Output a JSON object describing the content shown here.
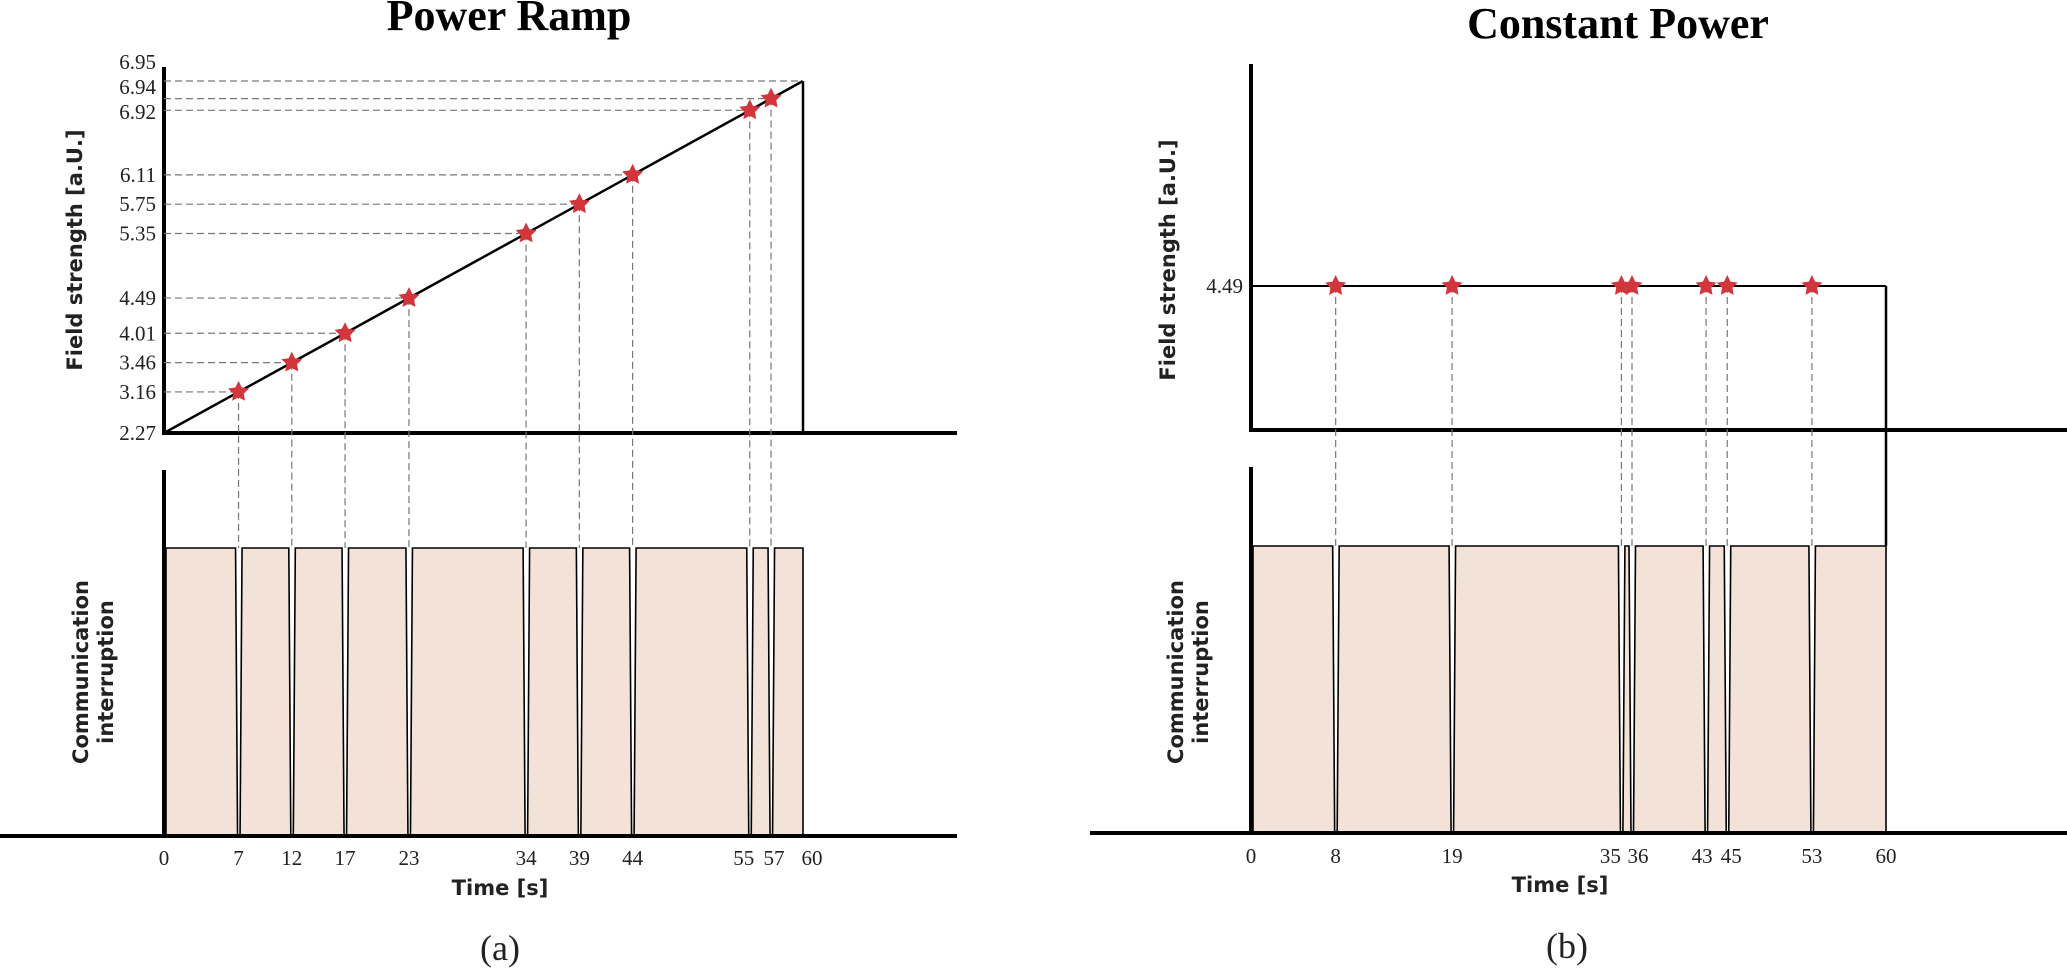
{
  "colors": {
    "star": "#d2363c",
    "bar_fill": "#f3e2d8",
    "axis": "#000000",
    "dash": "#777777"
  },
  "chart_data": [
    {
      "type": "line",
      "panel_caption": "(a)",
      "title": "Power Ramp",
      "ylabel": "Field strength [a.U.]",
      "ylabel_bottom": [
        "Communication",
        "interruption"
      ],
      "xlabel": "Time [s]",
      "xlim": [
        0,
        60
      ],
      "ramp": {
        "start": [
          0,
          2.27
        ],
        "end": [
          60,
          6.95
        ]
      },
      "y_ticks": [
        "2.27",
        "3.16",
        "3.46",
        "4.01",
        "4.49",
        "5.35",
        "5.75",
        "6.11",
        "6.92",
        "6.94",
        "6.95"
      ],
      "x_ticks": [
        "0",
        "7",
        "12",
        "17",
        "23",
        "34",
        "39",
        "44",
        "55",
        "57",
        "60"
      ],
      "events": [
        {
          "t": 7,
          "field": 3.16
        },
        {
          "t": 12,
          "field": 3.46
        },
        {
          "t": 17,
          "field": 4.01
        },
        {
          "t": 23,
          "field": 4.49
        },
        {
          "t": 34,
          "field": 5.35
        },
        {
          "t": 39,
          "field": 5.75
        },
        {
          "t": 44,
          "field": 6.11
        },
        {
          "t": 55,
          "field": 6.92
        },
        {
          "t": 57,
          "field": 6.94
        }
      ]
    },
    {
      "type": "line",
      "panel_caption": "(b)",
      "title": "Constant Power",
      "ylabel": "Field strength [a.U.]",
      "ylabel_bottom": [
        "Communication",
        "interruption"
      ],
      "xlabel": "Time [s]",
      "xlim": [
        0,
        60
      ],
      "constant": 4.49,
      "y_ticks": [
        "4.49"
      ],
      "x_ticks": [
        "0",
        "8",
        "19",
        "35",
        "36",
        "43",
        "45",
        "53",
        "60"
      ],
      "events": [
        {
          "t": 8,
          "field": 4.49
        },
        {
          "t": 19,
          "field": 4.49
        },
        {
          "t": 35,
          "field": 4.49
        },
        {
          "t": 36,
          "field": 4.49
        },
        {
          "t": 43,
          "field": 4.49
        },
        {
          "t": 45,
          "field": 4.49
        },
        {
          "t": 53,
          "field": 4.49
        }
      ]
    }
  ]
}
